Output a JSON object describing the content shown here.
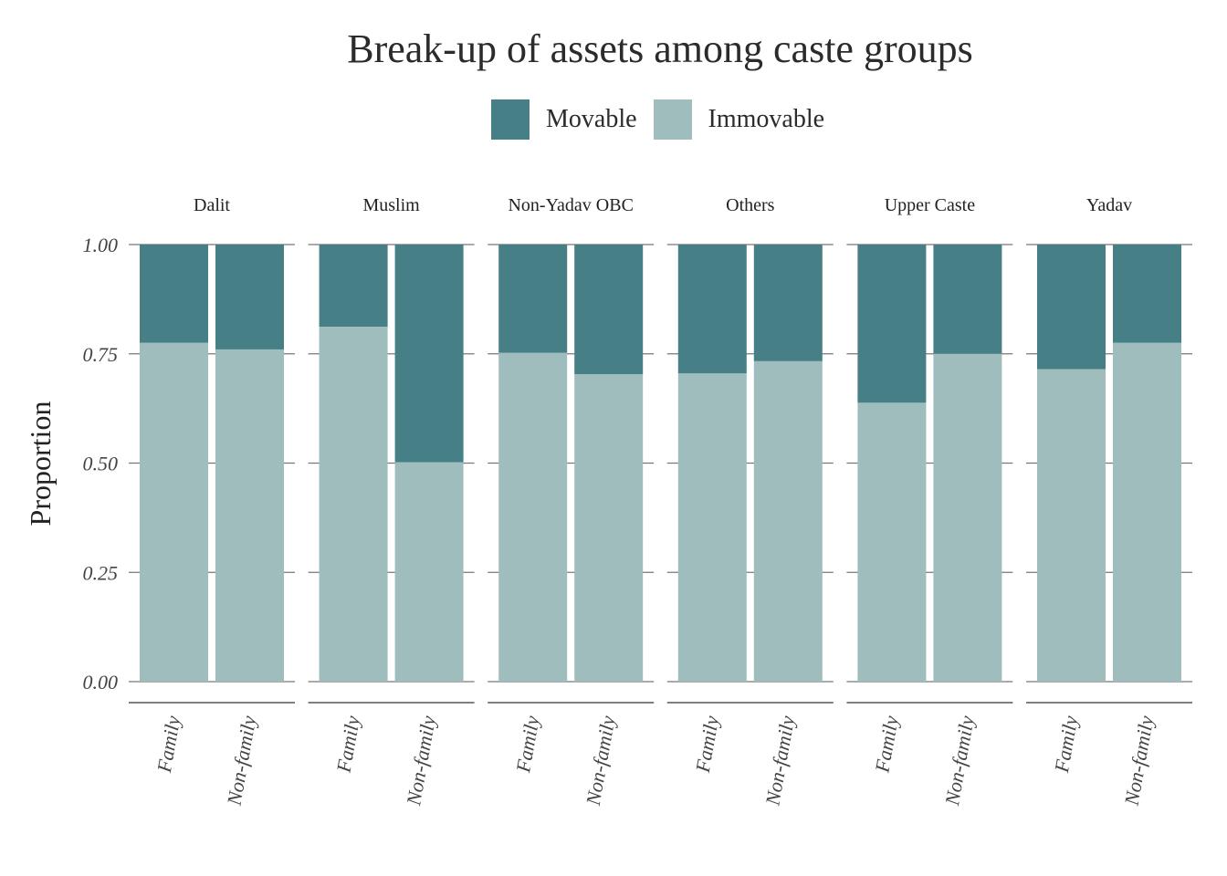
{
  "chart_data": {
    "type": "bar",
    "stacked": true,
    "title": "Break-up of assets among caste groups",
    "ylabel": "Proportion",
    "xlabel": "",
    "ylim": [
      0,
      1
    ],
    "yticks": [
      "0.00",
      "0.25",
      "0.50",
      "0.75",
      "1.00"
    ],
    "legend_position": "top",
    "grid": true,
    "series": [
      {
        "name": "Movable",
        "color": "#467f86"
      },
      {
        "name": "Immovable",
        "color": "#9fbdbc"
      }
    ],
    "categories": [
      "Family",
      "Non-family"
    ],
    "facets": [
      {
        "name": "Dalit",
        "immovable": [
          0.775,
          0.76
        ]
      },
      {
        "name": "Muslim",
        "immovable": [
          0.812,
          0.502
        ]
      },
      {
        "name": "Non-Yadav OBC",
        "immovable": [
          0.752,
          0.703
        ]
      },
      {
        "name": "Others",
        "immovable": [
          0.705,
          0.733
        ]
      },
      {
        "name": "Upper Caste",
        "immovable": [
          0.638,
          0.75
        ]
      },
      {
        "name": "Yadav",
        "immovable": [
          0.715,
          0.775
        ]
      }
    ]
  }
}
